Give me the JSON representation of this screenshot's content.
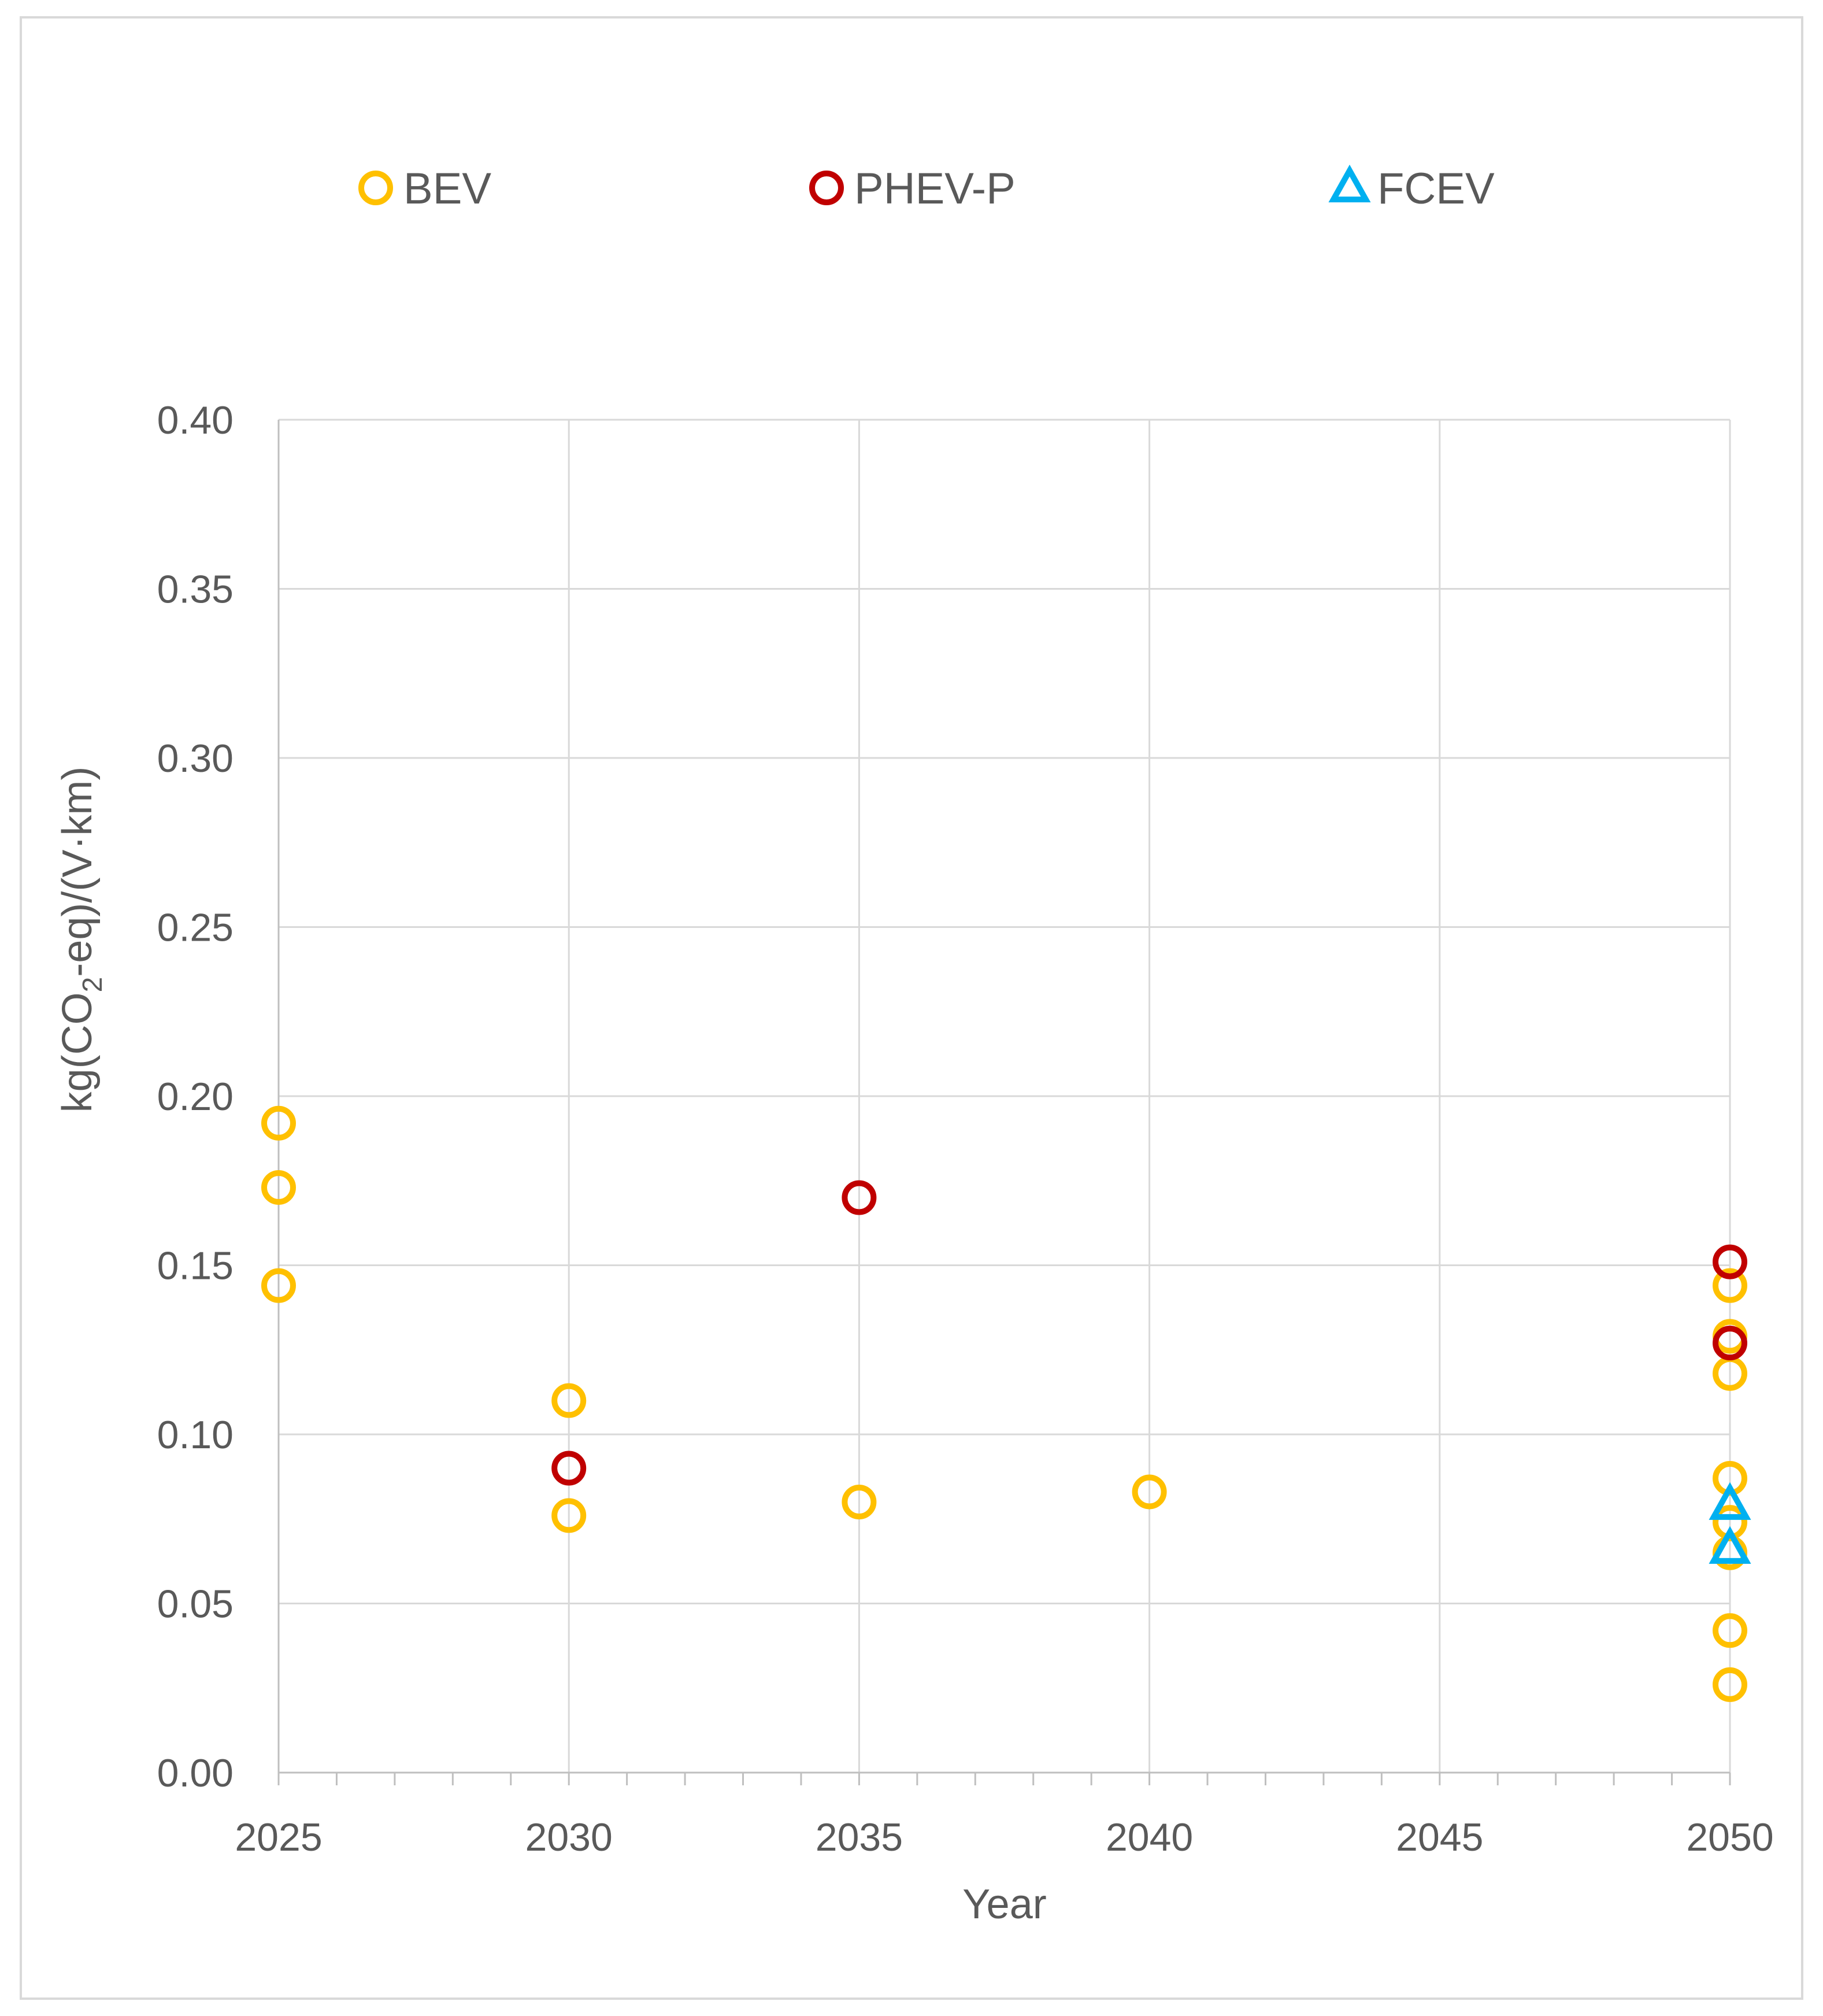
{
  "chart_data": {
    "type": "scatter",
    "title": "",
    "xlabel": "Year",
    "ylabel": {
      "prefix": "kg(CO",
      "subscript": "2",
      "suffix": "-eq)/(V·km)"
    },
    "xlim": [
      2025,
      2050
    ],
    "ylim": [
      0,
      0.4
    ],
    "x_ticks": [
      2025,
      2030,
      2035,
      2040,
      2045,
      2050
    ],
    "x_tick_labels": [
      "2025",
      "2030",
      "2035",
      "2040",
      "2045",
      "2050"
    ],
    "x_minor_step": 1,
    "y_ticks": [
      0,
      0.05,
      0.1,
      0.15,
      0.2,
      0.25,
      0.3,
      0.35,
      0.4
    ],
    "y_tick_labels": [
      "0.00",
      "0.05",
      "0.10",
      "0.15",
      "0.20",
      "0.25",
      "0.30",
      "0.35",
      "0.40"
    ],
    "grid": true,
    "legend_position": "top",
    "series": [
      {
        "name": "BEV",
        "marker": "circle",
        "color": "#FFC000",
        "points": [
          [
            2025,
            0.192
          ],
          [
            2025,
            0.173
          ],
          [
            2025,
            0.144
          ],
          [
            2030,
            0.11
          ],
          [
            2030,
            0.076
          ],
          [
            2035,
            0.08
          ],
          [
            2040,
            0.083
          ],
          [
            2050,
            0.144
          ],
          [
            2050,
            0.129
          ],
          [
            2050,
            0.118
          ],
          [
            2050,
            0.087
          ],
          [
            2050,
            0.074
          ],
          [
            2050,
            0.065
          ],
          [
            2050,
            0.042
          ],
          [
            2050,
            0.026
          ]
        ]
      },
      {
        "name": "PHEV-P",
        "marker": "circle",
        "color": "#C00000",
        "points": [
          [
            2030,
            0.09
          ],
          [
            2035,
            0.17
          ],
          [
            2050,
            0.151
          ],
          [
            2050,
            0.127
          ]
        ]
      },
      {
        "name": "FCEV",
        "marker": "triangle",
        "color": "#00B0F0",
        "points": [
          [
            2050,
            0.079
          ],
          [
            2050,
            0.066
          ]
        ]
      }
    ]
  }
}
